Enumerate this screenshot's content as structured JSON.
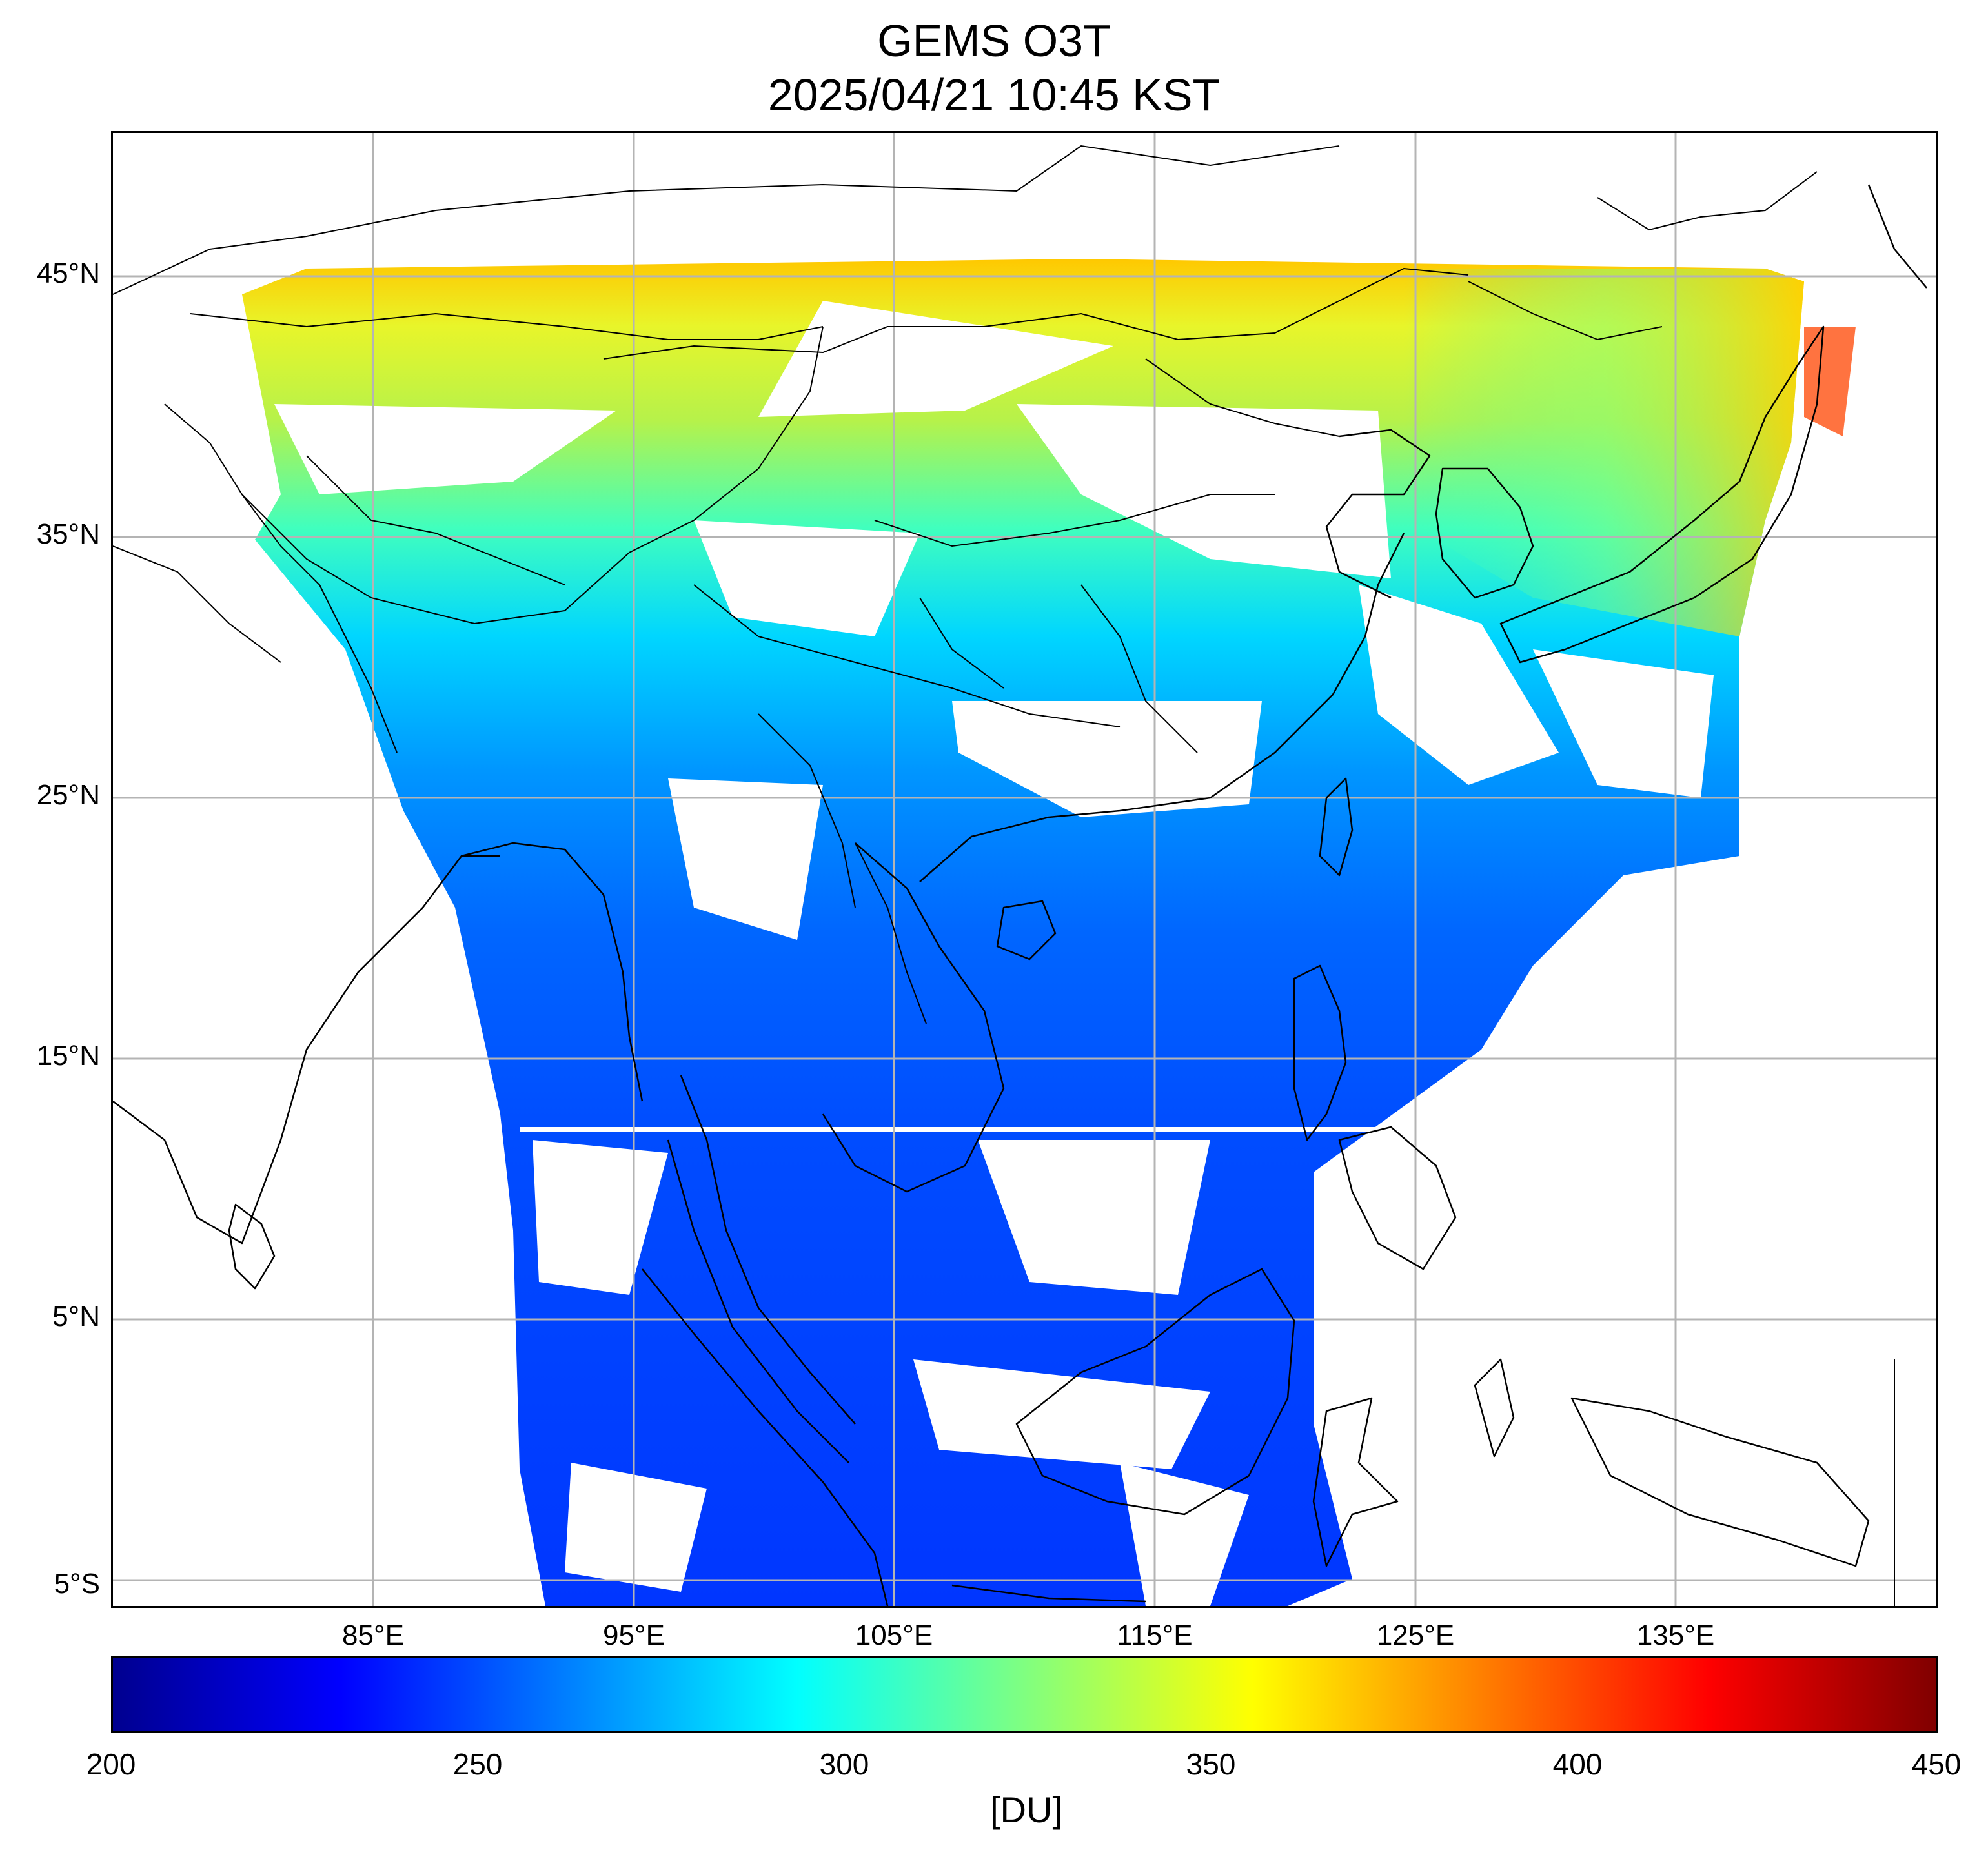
{
  "title": "GEMS O3T",
  "subtitle": "2025/04/21 10:45 KST",
  "map": {
    "lat_ticks": [
      "45°N",
      "35°N",
      "25°N",
      "15°N",
      "5°N",
      "5°S"
    ],
    "lon_ticks": [
      "85°E",
      "95°E",
      "105°E",
      "115°E",
      "125°E",
      "135°E"
    ],
    "extent": {
      "lon": [
        75,
        145
      ],
      "lat": [
        -6,
        50.5
      ]
    },
    "gridlines": true
  },
  "colorbar": {
    "ticks": [
      "200",
      "250",
      "300",
      "350",
      "400",
      "450"
    ],
    "unit": "[DU]",
    "range": [
      200,
      450
    ],
    "colormap": "jet"
  },
  "colors": {
    "low": "#00008f",
    "blue": "#0000ff",
    "cyan": "#00ffff",
    "green": "#80ff80",
    "yellow": "#ffff00",
    "orange": "#ff8000",
    "red": "#ff0000",
    "high": "#800000"
  }
}
